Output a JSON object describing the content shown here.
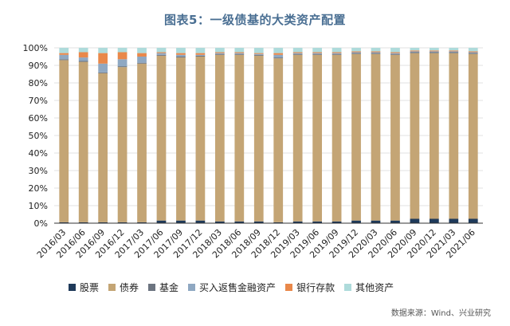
{
  "title": "图表5：一级债基的大类资产配置",
  "source": "数据来源：Wind、兴业研究",
  "colors": {
    "股票": "#1f3a5a",
    "债券": "#c4a575",
    "基金": "#6c7480",
    "买入返售金融资产": "#8fa8c2",
    "银行存款": "#e9884a",
    "其他资产": "#aedbdb"
  },
  "chart_data": {
    "type": "bar",
    "stacked": true,
    "categories": [
      "2016/03",
      "2016/06",
      "2016/09",
      "2016/12",
      "2017/03",
      "2017/06",
      "2017/09",
      "2017/12",
      "2018/03",
      "2018/06",
      "2018/09",
      "2018/12",
      "2019/03",
      "2019/06",
      "2019/09",
      "2019/12",
      "2020/03",
      "2020/06",
      "2020/09",
      "2020/12",
      "2021/03",
      "2021/06"
    ],
    "y_tick_labels": [
      "0%",
      "10%",
      "20%",
      "30%",
      "40%",
      "50%",
      "60%",
      "70%",
      "80%",
      "90%",
      "100%"
    ],
    "ylim": [
      0,
      100
    ],
    "legend_position": "bottom",
    "series": [
      {
        "name": "股票",
        "values": [
          0.5,
          0.5,
          0.5,
          0.5,
          0.5,
          1.5,
          1.5,
          1.5,
          1.0,
          1.0,
          1.0,
          0.5,
          1.0,
          1.0,
          1.0,
          1.5,
          1.5,
          1.5,
          2.5,
          2.5,
          2.5,
          2.5
        ]
      },
      {
        "name": "债券",
        "values": [
          92.5,
          91.5,
          85.0,
          88.5,
          90.5,
          94.0,
          93.0,
          93.5,
          95.0,
          95.0,
          94.5,
          93.5,
          95.0,
          95.0,
          95.0,
          95.0,
          95.0,
          94.5,
          94.5,
          94.5,
          94.5,
          94.0
        ]
      },
      {
        "name": "基金",
        "values": [
          0.5,
          0.5,
          0.5,
          0.5,
          0.5,
          0.5,
          0.5,
          0.5,
          0.5,
          0.5,
          0.5,
          0.5,
          0.5,
          0.5,
          0.5,
          0.5,
          0.5,
          0.5,
          0.5,
          0.5,
          0.5,
          0.5
        ]
      },
      {
        "name": "买入返售金融资产",
        "values": [
          2.5,
          2.0,
          5.0,
          4.0,
          3.5,
          1.0,
          1.0,
          0.5,
          0.5,
          0.5,
          0.5,
          1.5,
          0.5,
          0.5,
          0.5,
          0.5,
          0.5,
          0.5,
          0.5,
          0.5,
          0.5,
          0.5
        ]
      },
      {
        "name": "银行存款",
        "values": [
          1.0,
          3.0,
          6.0,
          4.0,
          2.0,
          0.5,
          1.0,
          1.0,
          0.5,
          0.5,
          0.5,
          1.0,
          0.5,
          0.5,
          0.5,
          0.5,
          0.5,
          0.5,
          0.5,
          0.5,
          0.5,
          0.5
        ]
      },
      {
        "name": "其他资产",
        "values": [
          3.0,
          2.5,
          3.0,
          2.5,
          3.0,
          2.5,
          3.0,
          3.0,
          2.5,
          2.5,
          3.0,
          3.0,
          2.5,
          2.5,
          2.5,
          2.0,
          2.0,
          2.5,
          1.5,
          1.5,
          1.5,
          2.0
        ]
      }
    ]
  }
}
